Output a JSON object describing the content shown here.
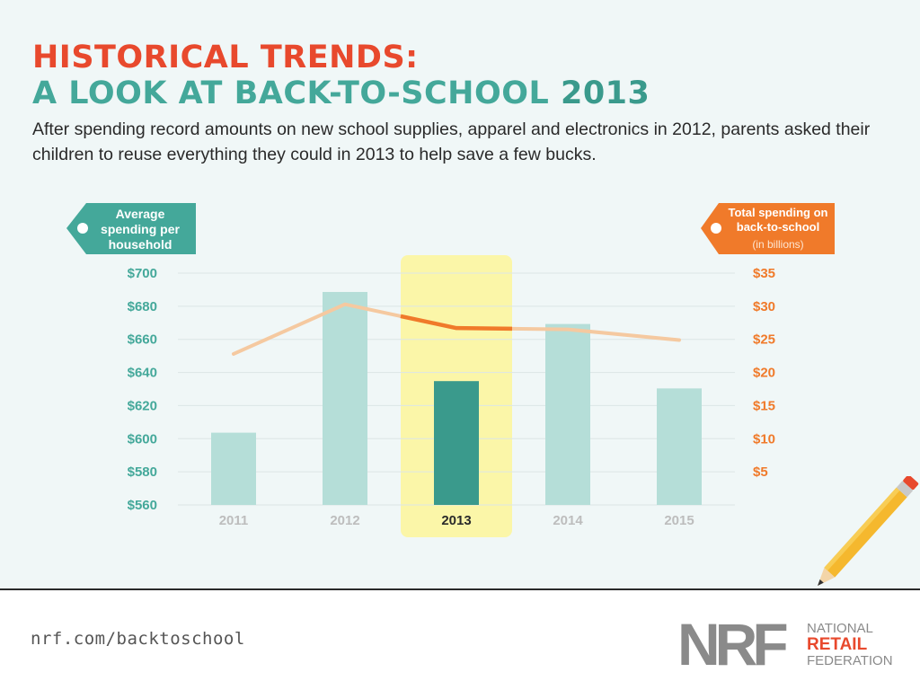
{
  "header": {
    "title_line1": "HISTORICAL TRENDS:",
    "title_line2": "A LOOK AT BACK-TO-SCHOOL",
    "title_year": "2013",
    "subtitle": "After spending record amounts on new school supplies, apparel and electronics in 2012, parents asked their children to reuse everything they could in 2013 to help save a few bucks."
  },
  "footer": {
    "link": "nrf.com/backtoschool",
    "logo_letters": "NRF",
    "logo_line1": "NATIONAL",
    "logo_line2": "RETAIL",
    "logo_line3": "FEDERATION"
  },
  "colors": {
    "teal": "#44a89a",
    "teal_dark": "#3a9a8c",
    "teal_light": "#b5ded8",
    "orange": "#f07a2a",
    "orange_light": "#f5c9a0",
    "red": "#e8492d",
    "highlight": "#fbf6a8"
  },
  "chart_data": {
    "type": "bar",
    "categories": [
      "2011",
      "2012",
      "2013",
      "2014",
      "2015"
    ],
    "highlight_category": "2013",
    "y_left": {
      "label": [
        "Average",
        "spending per",
        "household"
      ],
      "ticks": [
        "$700",
        "$680",
        "$660",
        "$640",
        "$620",
        "$600",
        "$580",
        "$560"
      ],
      "ylim": [
        560,
        700
      ]
    },
    "y_right": {
      "label": [
        "Total spending on",
        "back-to-school"
      ],
      "sublabel": "(in billions)",
      "ticks": [
        "$35",
        "$30",
        "$25",
        "$20",
        "$15",
        "$10",
        "$5"
      ],
      "ylim": [
        0,
        35
      ]
    },
    "series": [
      {
        "type": "bar",
        "axis": "left",
        "values": [
          603.63,
          688.62,
          634.78,
          669.28,
          630.36
        ]
      },
      {
        "type": "line",
        "axis": "right",
        "values": [
          22.8,
          30.3,
          26.7,
          26.5,
          24.9
        ]
      }
    ],
    "grid": true
  }
}
